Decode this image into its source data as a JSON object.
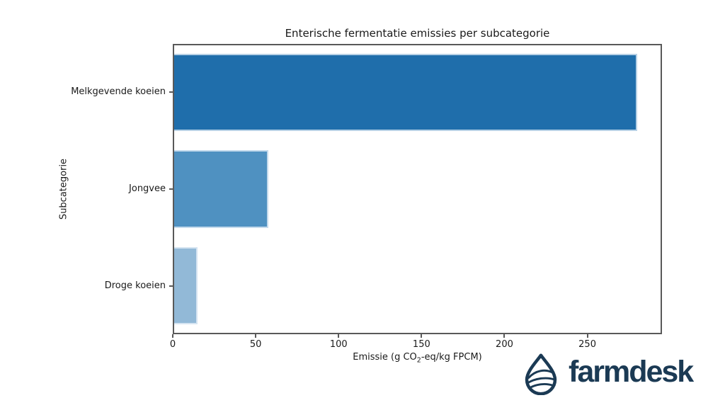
{
  "chart_data": {
    "type": "bar",
    "orientation": "horizontal",
    "title": "Enterische fermentatie emissies per subcategorie",
    "categories": [
      "Melkgevende koeien",
      "Jongvee",
      "Droge koeien"
    ],
    "values": [
      281,
      57,
      14
    ],
    "bar_colors": [
      "#1f6eab",
      "#4f91c1",
      "#92b9d7"
    ],
    "xlabel_pre": "Emissie (g CO",
    "xlabel_sub": "2",
    "xlabel_post": "-eq/kg FPCM)",
    "ylabel": "Subcategorie",
    "xlim": [
      0,
      295
    ],
    "x_ticks": [
      0,
      50,
      100,
      150,
      200,
      250
    ],
    "grid": false,
    "legend": null,
    "bar_rel_height": 0.8
  },
  "branding": {
    "name": "farmdesk",
    "color": "#1b3a54",
    "icon": "farmdesk-drop-icon"
  },
  "colors": {
    "spine": "#595959",
    "text": "#1a1a1a",
    "background": "#ffffff"
  }
}
